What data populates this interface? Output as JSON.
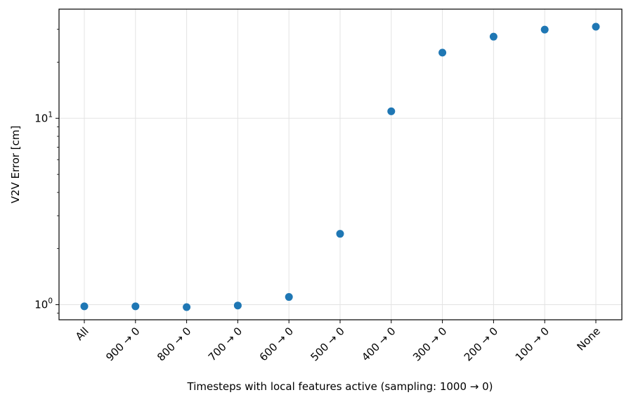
{
  "chart_data": {
    "type": "scatter",
    "categories": [
      "All",
      "900 → 0",
      "800 → 0",
      "700 → 0",
      "600 → 0",
      "500 → 0",
      "400 → 0",
      "300 → 0",
      "200 → 0",
      "100 → 0",
      "None"
    ],
    "values": [
      0.98,
      0.98,
      0.97,
      0.99,
      1.1,
      2.4,
      10.9,
      22.5,
      27.4,
      29.9,
      31.0
    ],
    "xlabel": "Timesteps with local features active (sampling: 1000 → 0)",
    "ylabel": "V2V Error [cm]",
    "yscale": "log",
    "ylim": [
      0.83,
      38.5
    ],
    "yticks": [
      {
        "value": 1,
        "base": "10",
        "exp": "0"
      },
      {
        "value": 10,
        "base": "10",
        "exp": "1"
      }
    ],
    "grid": true,
    "marker_color": "#1f77b4"
  }
}
